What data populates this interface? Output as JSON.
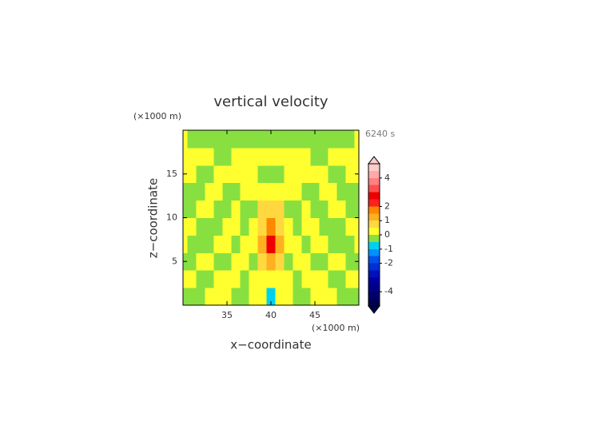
{
  "chart_data": {
    "type": "contour",
    "title": "vertical velocity",
    "time_label": "6240 s",
    "y_unit_label": "(×1000 m)",
    "x_unit_label": "(×1000 m)",
    "x_label": "x−coordinate",
    "y_label": "z−coordinate",
    "xlim": [
      30,
      50
    ],
    "ylim": [
      0,
      20
    ],
    "xticks": [
      35,
      40,
      45
    ],
    "yticks": [
      5,
      10,
      15
    ],
    "x": [
      30,
      31,
      32,
      33,
      34,
      35,
      36,
      37,
      38,
      39,
      40,
      41,
      42,
      43,
      44,
      45,
      46,
      47,
      48,
      49,
      50
    ],
    "z": [
      1,
      3,
      5,
      7,
      9,
      11,
      13,
      15,
      17,
      19
    ],
    "values": [
      [
        -0.2,
        -0.2,
        -0.2,
        0.2,
        0.2,
        0.2,
        -0.2,
        -0.2,
        0.2,
        0.2,
        -0.7,
        0.2,
        0.2,
        -0.2,
        -0.2,
        0.2,
        0.2,
        0.2,
        -0.2,
        -0.2,
        -0.2
      ],
      [
        0.2,
        0.2,
        -0.2,
        -0.2,
        0.2,
        0.2,
        0.2,
        -0.2,
        0.2,
        0.2,
        0.2,
        0.2,
        0.2,
        -0.2,
        0.2,
        0.2,
        0.2,
        -0.2,
        -0.2,
        0.2,
        0.2
      ],
      [
        -0.2,
        -0.2,
        0.2,
        0.2,
        -0.2,
        -0.2,
        0.2,
        0.2,
        -0.2,
        0.7,
        1.2,
        0.7,
        -0.2,
        0.2,
        0.2,
        -0.2,
        -0.2,
        0.2,
        0.2,
        -0.2,
        -0.2
      ],
      [
        0.2,
        -0.2,
        -0.2,
        -0.2,
        0.2,
        0.2,
        -0.2,
        0.2,
        0.2,
        1.2,
        2.5,
        1.2,
        0.2,
        0.2,
        -0.2,
        0.2,
        0.2,
        -0.2,
        -0.2,
        -0.2,
        0.2
      ],
      [
        0.2,
        0.2,
        -0.2,
        -0.2,
        -0.2,
        0.2,
        0.2,
        -0.2,
        0.2,
        0.7,
        1.7,
        0.7,
        0.2,
        -0.2,
        0.2,
        0.2,
        -0.2,
        -0.2,
        -0.2,
        0.2,
        0.2
      ],
      [
        -0.2,
        -0.2,
        0.2,
        0.2,
        -0.2,
        -0.2,
        0.2,
        -0.2,
        -0.2,
        0.7,
        0.7,
        0.7,
        -0.2,
        -0.2,
        0.2,
        -0.2,
        -0.2,
        0.2,
        0.2,
        -0.2,
        -0.2
      ],
      [
        -0.2,
        -0.2,
        -0.2,
        0.2,
        0.2,
        -0.2,
        -0.2,
        0.2,
        0.2,
        0.2,
        0.2,
        0.2,
        0.2,
        0.2,
        -0.2,
        -0.2,
        0.2,
        0.2,
        -0.2,
        -0.2,
        -0.2
      ],
      [
        0.2,
        0.2,
        -0.2,
        -0.2,
        0.2,
        0.2,
        0.2,
        0.2,
        0.2,
        -0.2,
        -0.2,
        -0.2,
        0.2,
        0.2,
        0.2,
        0.2,
        0.2,
        -0.2,
        -0.2,
        0.2,
        0.2
      ],
      [
        0.2,
        0.2,
        0.2,
        0.2,
        -0.2,
        -0.2,
        0.2,
        0.2,
        0.2,
        0.2,
        0.2,
        0.2,
        0.2,
        0.2,
        0.2,
        -0.2,
        -0.2,
        0.2,
        0.2,
        0.2,
        0.2
      ],
      [
        0.2,
        -0.2,
        -0.2,
        -0.2,
        -0.2,
        -0.2,
        -0.2,
        -0.2,
        -0.2,
        -0.2,
        -0.2,
        -0.2,
        -0.2,
        -0.2,
        -0.2,
        -0.2,
        -0.2,
        -0.2,
        -0.2,
        -0.2,
        0.2
      ]
    ],
    "colorbar": {
      "lim": [
        -5,
        5
      ],
      "ticks": [
        -4,
        -2,
        -1,
        0,
        1,
        2,
        4
      ],
      "levels": [
        -5,
        -4.5,
        -4,
        -3.5,
        -3,
        -2.5,
        -2,
        -1.5,
        -1,
        -0.5,
        0,
        0.5,
        1,
        1.5,
        2,
        2.5,
        3,
        3.5,
        4,
        4.5,
        5
      ],
      "colors": [
        "#000050",
        "#00006a",
        "#000085",
        "#0000a0",
        "#0010bb",
        "#0030d5",
        "#0050ee",
        "#0090ff",
        "#00d0f0",
        "#88e040",
        "#ffff30",
        "#ffd840",
        "#ffb020",
        "#ff8800",
        "#ff2020",
        "#ee0000",
        "#ff5050",
        "#ff8080",
        "#ffaaaa",
        "#ffcccc"
      ]
    }
  }
}
